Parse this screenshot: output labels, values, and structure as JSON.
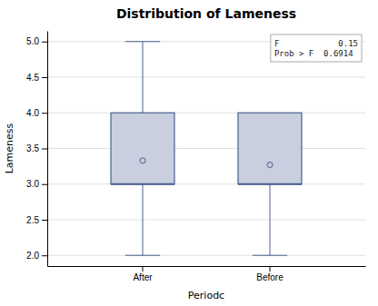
{
  "chart_data": {
    "type": "box",
    "title": "Distribution of Lameness",
    "x_label": "Periodc",
    "y_label": "Lameness",
    "categories": [
      "After",
      "Before"
    ],
    "boxes": [
      {
        "q1": 3.0,
        "median": 3.0,
        "q3": 4.0,
        "whisker_low": 2.0,
        "whisker_high": 5.0,
        "mean": 3.33
      },
      {
        "q1": 3.0,
        "median": 3.0,
        "q3": 4.0,
        "whisker_low": 2.0,
        "whisker_high": 4.0,
        "mean": 3.27
      }
    ],
    "color": "#4a6090",
    "ylim": [
      1.85,
      5.15
    ],
    "yticks": [
      {
        "value": 2.0,
        "label": "2.0"
      },
      {
        "value": 2.5,
        "label": "2.5"
      },
      {
        "value": 3.0,
        "label": "3.0"
      },
      {
        "value": 3.5,
        "label": "3.5"
      },
      {
        "value": 4.0,
        "label": "4.0"
      },
      {
        "value": 4.5,
        "label": "4.5"
      },
      {
        "value": 5.0,
        "label": "5.0"
      }
    ],
    "annotations": [
      "F            0.15",
      "Prob > F  0.6914"
    ],
    "grid": true
  }
}
